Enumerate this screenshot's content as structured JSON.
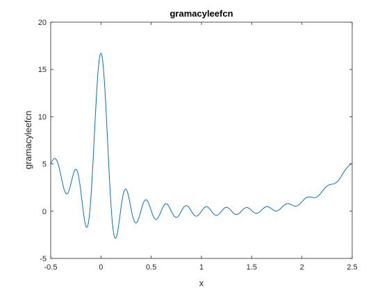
{
  "chart_data": {
    "type": "line",
    "title": "gramacyleefcn",
    "xlabel": "x",
    "ylabel": "gramacyleefcn",
    "xlim": [
      -0.5,
      2.5
    ],
    "ylim": [
      -5,
      20
    ],
    "xticks": [
      -0.5,
      0,
      0.5,
      1,
      1.5,
      2,
      2.5
    ],
    "xtick_labels": [
      "-0.5",
      "0",
      "0.5",
      "1",
      "1.5",
      "2",
      "2.5"
    ],
    "yticks": [
      -5,
      0,
      5,
      10,
      15,
      20
    ],
    "ytick_labels": [
      "-5",
      "0",
      "5",
      "10",
      "15",
      "20"
    ],
    "grid": false,
    "line_color": "#0072BD",
    "series": [
      {
        "function": "sin(10*pi*x)/(2*x) + (x-1)^4",
        "x_range": [
          -0.5,
          2.5
        ],
        "samples": 1201
      }
    ]
  }
}
